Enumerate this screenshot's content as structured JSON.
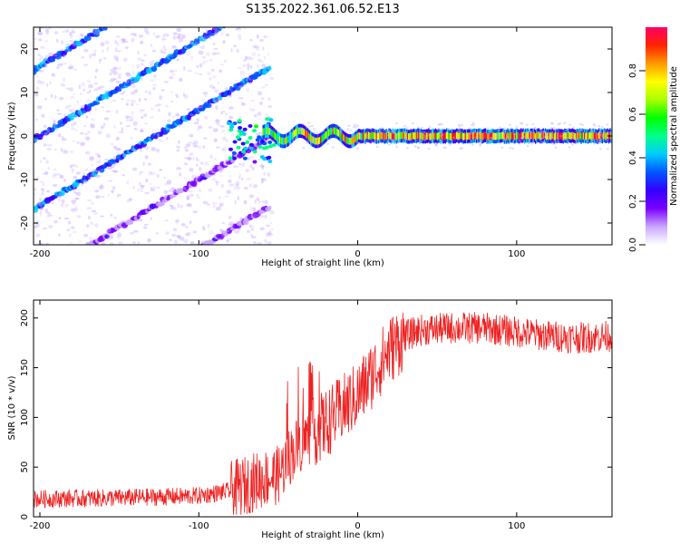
{
  "title": "S135.2022.361.06.52.E13",
  "chart_data": [
    {
      "type": "heatmap",
      "xlabel": "Height of straight line (km)",
      "ylabel": "Frequency (Hz)",
      "xlim": [
        -204,
        160
      ],
      "ylim": [
        -25,
        25
      ],
      "xticks": [
        -200,
        -100,
        0,
        100
      ],
      "yticks": [
        -20,
        -10,
        0,
        10,
        20
      ],
      "colorbar": {
        "label": "Normalized spectral amplitude",
        "range": [
          0,
          1
        ],
        "ticks": [
          "0.0",
          "0.2",
          "0.4",
          "0.6",
          "0.8"
        ],
        "colors": [
          "#ffffff",
          "#c9a8ff",
          "#7a00ff",
          "#3300ff",
          "#0055ff",
          "#00ccff",
          "#00ff88",
          "#00ff00",
          "#aaff00",
          "#ffff00",
          "#ff9900",
          "#ff2200",
          "#ff0066"
        ]
      },
      "features": [
        {
          "name": "",
          "description_values": {
            "line_freq_hz": 0,
            "x_start_km": -60,
            "x_end_km": 160
          }
        },
        {
          "name": "",
          "description_values": {
            "slope_hz_per_km": 0.22,
            "x_start_km": -204,
            "x_end_km": -55
          }
        }
      ]
    },
    {
      "type": "line",
      "xlabel": "Height of straight line (km)",
      "ylabel": "SNR (10 * v/v)",
      "xlim": [
        -204,
        160
      ],
      "ylim": [
        0,
        218
      ],
      "xticks": [
        -200,
        -100,
        0,
        100
      ],
      "yticks": [
        0,
        50,
        100,
        150,
        200
      ],
      "color": "#ee2222",
      "trend": {
        "x": [
          -204,
          -150,
          -100,
          -80,
          -70,
          -60,
          -50,
          -45,
          -40,
          -30,
          -20,
          -10,
          0,
          10,
          20,
          30,
          40,
          60,
          80,
          100,
          120,
          140,
          160
        ],
        "y": [
          18,
          19,
          21,
          26,
          32,
          38,
          42,
          55,
          68,
          82,
          94,
          108,
          122,
          145,
          168,
          182,
          188,
          190,
          190,
          186,
          182,
          180,
          182
        ]
      }
    }
  ]
}
